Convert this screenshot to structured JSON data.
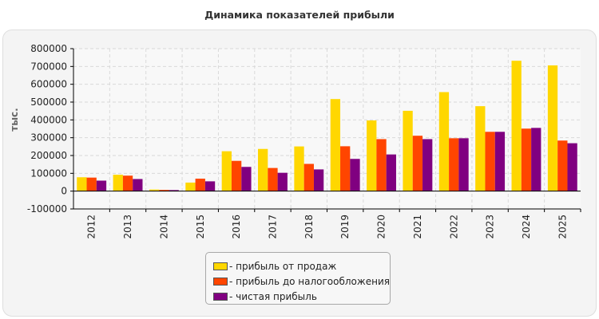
{
  "chart_data": {
    "type": "bar",
    "title": "Динамика показателей прибыли",
    "xlabel": "",
    "ylabel": "тыс.",
    "ylim": [
      -100000,
      800000
    ],
    "yticks": [
      "800000",
      "700000",
      "600000",
      "500000",
      "400000",
      "300000",
      "200000",
      "100000",
      "0",
      "-100000"
    ],
    "categories": [
      "2012",
      "2013",
      "2014",
      "2015",
      "2016",
      "2017",
      "2018",
      "2019",
      "2020",
      "2021",
      "2022",
      "2023",
      "2024",
      "2025"
    ],
    "grid": true,
    "legend_position": "bottom",
    "series": [
      {
        "name": "прибыль от продаж",
        "color": "#ffd700",
        "values": [
          78000,
          92000,
          9000,
          48000,
          224000,
          237000,
          251000,
          517000,
          397000,
          451000,
          556000,
          477000,
          732000,
          706000
        ]
      },
      {
        "name": "прибыль до налогообложения",
        "color": "#ff4500",
        "values": [
          76000,
          87000,
          7000,
          70000,
          170000,
          130000,
          153000,
          252000,
          292000,
          311000,
          297000,
          333000,
          351000,
          284000
        ]
      },
      {
        "name": "чистая прибыль",
        "color": "#800080",
        "values": [
          59000,
          68000,
          6000,
          55000,
          136000,
          103000,
          122000,
          181000,
          206000,
          292000,
          297000,
          333000,
          355000,
          269000
        ]
      }
    ]
  },
  "legend": {
    "items": [
      {
        "label": "- прибыль от продаж"
      },
      {
        "label": "- прибыль до налогообложения"
      },
      {
        "label": "- чистая прибыль"
      }
    ]
  }
}
